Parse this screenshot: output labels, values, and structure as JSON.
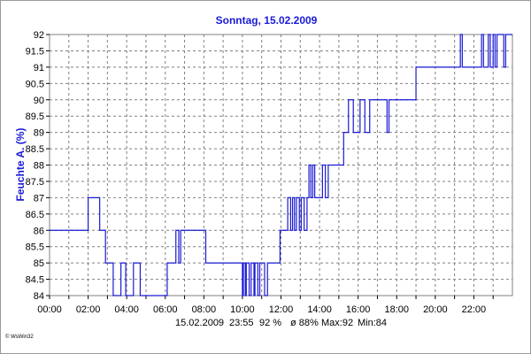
{
  "chart_data": {
    "type": "line",
    "title": "Sonntag, 15.02.2009",
    "ylabel": "Feuchte A. (%)",
    "xlabel": "",
    "xlim": [
      0,
      24
    ],
    "ylim": [
      84,
      92
    ],
    "x_ticks": [
      "00:00",
      "02:00",
      "04:00",
      "06:00",
      "08:00",
      "10:00",
      "12:00",
      "14:00",
      "16:00",
      "18:00",
      "20:00",
      "22:00"
    ],
    "y_ticks": [
      "84",
      "84.5",
      "85",
      "85.5",
      "86",
      "86.5",
      "87",
      "87.5",
      "88",
      "88.5",
      "89",
      "89.5",
      "90",
      "90.5",
      "91",
      "91.5",
      "92"
    ],
    "grid": true,
    "series": [
      {
        "color": "#1a1ad6",
        "step": true,
        "x": [
          0,
          2.0,
          2.6,
          2.9,
          3.3,
          3.7,
          3.95,
          4.35,
          4.7,
          6.1,
          6.55,
          6.7,
          6.8,
          8.1,
          10.0,
          10.05,
          10.15,
          10.2,
          10.35,
          10.45,
          10.6,
          10.65,
          10.8,
          10.9,
          11.15,
          11.3,
          11.95,
          12.35,
          12.5,
          12.6,
          12.7,
          12.8,
          12.95,
          13.05,
          13.2,
          13.35,
          13.45,
          13.55,
          13.65,
          13.75,
          14.15,
          14.3,
          14.45,
          14.65,
          15.25,
          15.5,
          15.75,
          16.1,
          16.35,
          16.6,
          16.8,
          17.5,
          17.6,
          17.8,
          18.1,
          19.0,
          21.3,
          21.4,
          21.5,
          21.7,
          22.4,
          22.5,
          22.75,
          22.85,
          23.0,
          23.1,
          23.2,
          23.55,
          23.65,
          23.8,
          24.0
        ],
        "y": [
          86,
          87,
          86,
          85,
          84,
          85,
          84,
          85,
          84,
          85,
          86,
          85,
          86,
          85,
          84,
          85,
          84,
          85,
          84,
          85,
          84,
          85,
          84,
          85,
          84,
          85,
          86,
          87,
          86,
          87,
          86,
          87,
          86,
          87,
          86,
          87,
          88,
          87,
          88,
          87,
          88,
          87,
          88,
          88,
          89,
          90,
          89,
          90,
          89,
          90,
          90,
          89,
          90,
          90,
          90,
          91,
          92,
          91,
          91,
          91,
          92,
          91,
          92,
          91,
          92,
          91,
          92,
          91,
          92,
          92,
          92
        ]
      }
    ]
  },
  "status_bar": {
    "date": "15.02.2009",
    "time": "23:55",
    "current": "92 %",
    "average": "ø 88%",
    "max": "Max:92",
    "min": "Min:84"
  },
  "credit": "© WsWin32"
}
